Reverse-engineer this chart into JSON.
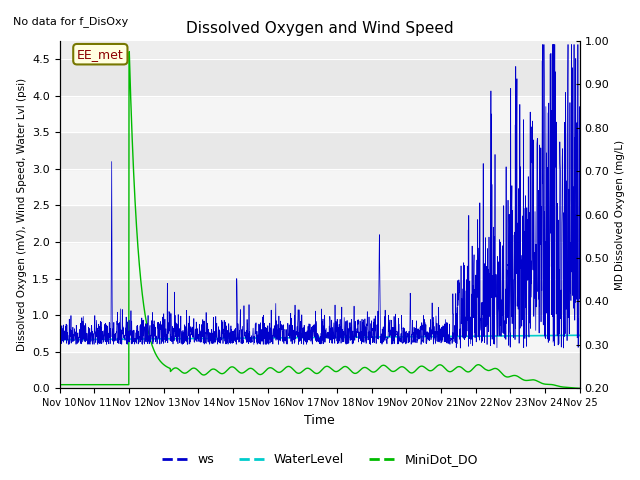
{
  "title": "Dissolved Oxygen and Wind Speed",
  "top_left_text": "No data for f_DisOxy",
  "ylabel_left": "Dissolved Oxygen (mV), Wind Speed, Water Lvl (psi)",
  "ylabel_right": "MD Dissolved Oxygen (mg/L)",
  "xlabel": "Time",
  "ylim_left": [
    0.0,
    4.75
  ],
  "ylim_right": [
    0.2,
    1.0
  ],
  "annotation_text": "EE_met",
  "ws_color": "#0000cc",
  "waterlevel_color": "#00cccc",
  "minidot_color": "#00bb00",
  "x_tick_labels": [
    "Nov 10",
    "Nov 11",
    "Nov 12",
    "Nov 13",
    "Nov 14",
    "Nov 15",
    "Nov 16",
    "Nov 17",
    "Nov 18",
    "Nov 19",
    "Nov 20",
    "Nov 21",
    "Nov 22",
    "Nov 23",
    "Nov 24",
    "Nov 25"
  ],
  "left_yticks": [
    0.0,
    0.5,
    1.0,
    1.5,
    2.0,
    2.5,
    3.0,
    3.5,
    4.0,
    4.5
  ],
  "right_yticks": [
    0.2,
    0.3,
    0.4,
    0.5,
    0.6,
    0.7,
    0.8,
    0.9,
    1.0
  ],
  "band_colors": [
    "#e8e8e8",
    "#f5f5f5"
  ],
  "figsize": [
    6.4,
    4.8
  ],
  "dpi": 100
}
